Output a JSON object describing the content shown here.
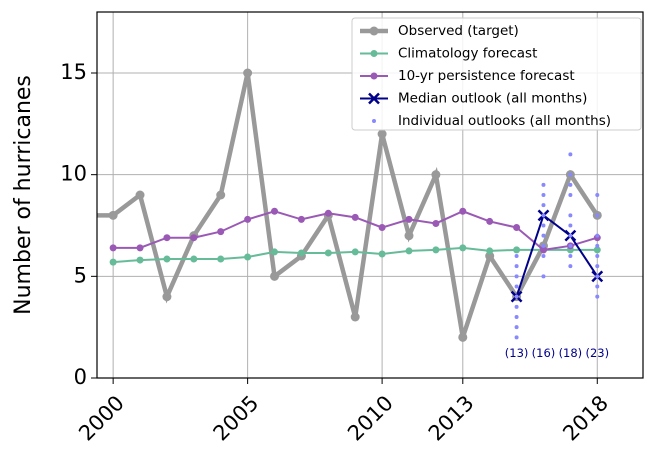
{
  "chart_data": {
    "type": "line",
    "ylabel": "Number of hurricanes",
    "xlim": [
      1999.4,
      2019.7
    ],
    "ylim": [
      0,
      18
    ],
    "xticks": [
      2000,
      2005,
      2010,
      2013,
      2018
    ],
    "yticks": [
      0,
      5,
      10,
      15
    ],
    "grid": true,
    "legend": "upper right",
    "series": [
      {
        "name": "Observed (target)",
        "color": "#999999",
        "style": "line",
        "x": [
          1999,
          2000,
          2001,
          2002,
          2003,
          2004,
          2005,
          2006,
          2007,
          2008,
          2009,
          2010,
          2011,
          2012,
          2013,
          2014,
          2015,
          2016,
          2017,
          2018
        ],
        "values": [
          8,
          8,
          9,
          4,
          7,
          9,
          15,
          5,
          6,
          8,
          3,
          12,
          7,
          10,
          2,
          6,
          4,
          6.5,
          10,
          8
        ]
      },
      {
        "name": "Climatology forecast",
        "color": "#66bb99",
        "style": "line",
        "x": [
          2000,
          2001,
          2002,
          2003,
          2004,
          2005,
          2006,
          2007,
          2008,
          2009,
          2010,
          2011,
          2012,
          2013,
          2014,
          2015,
          2016,
          2017,
          2018
        ],
        "values": [
          5.7,
          5.8,
          5.85,
          5.85,
          5.85,
          5.95,
          6.2,
          6.15,
          6.15,
          6.2,
          6.1,
          6.25,
          6.3,
          6.4,
          6.25,
          6.3,
          6.3,
          6.3,
          6.3
        ]
      },
      {
        "name": "10-yr persistence forecast",
        "color": "#9b59b6",
        "style": "line",
        "x": [
          2000,
          2001,
          2002,
          2003,
          2004,
          2005,
          2006,
          2007,
          2008,
          2009,
          2010,
          2011,
          2012,
          2013,
          2014,
          2015,
          2016,
          2017,
          2018
        ],
        "values": [
          6.4,
          6.4,
          6.9,
          6.9,
          7.2,
          7.8,
          8.2,
          7.8,
          8.1,
          7.9,
          7.4,
          7.8,
          7.6,
          8.2,
          7.7,
          7.4,
          6.3,
          6.5,
          6.9
        ]
      },
      {
        "name": "Median outlook (all months)",
        "color": "#00008b",
        "style": "cross",
        "x": [
          2015,
          2016,
          2017,
          2018
        ],
        "values": [
          4,
          8,
          7,
          5
        ]
      },
      {
        "name": "Individual outlooks (all months)",
        "color": "#8888ff",
        "style": "scatter",
        "x": [
          2015,
          2015,
          2015,
          2015,
          2015,
          2015,
          2015,
          2015,
          2015,
          2016,
          2016,
          2016,
          2016,
          2016,
          2016,
          2016,
          2016,
          2016,
          2017,
          2017,
          2017,
          2017,
          2017,
          2017,
          2017,
          2017,
          2017,
          2017,
          2018,
          2018,
          2018,
          2018,
          2018,
          2018,
          2018,
          2018,
          2018
        ],
        "values": [
          2,
          2.5,
          3,
          3.5,
          4,
          4.5,
          5,
          5.5,
          6,
          5,
          6,
          6.5,
          7,
          7.5,
          8,
          8.5,
          9,
          9.5,
          5.5,
          6,
          6.5,
          7,
          7.5,
          8,
          9,
          9.5,
          10,
          11,
          4,
          4.5,
          5,
          5.5,
          6,
          6.5,
          7,
          8,
          9
        ]
      }
    ],
    "annotations": [
      {
        "text": "(13)",
        "x": 2015,
        "y": 1.2
      },
      {
        "text": "(16)",
        "x": 2016,
        "y": 1.2
      },
      {
        "text": "(18)",
        "x": 2017,
        "y": 1.2
      },
      {
        "text": "(23)",
        "x": 2018,
        "y": 1.2
      }
    ]
  }
}
